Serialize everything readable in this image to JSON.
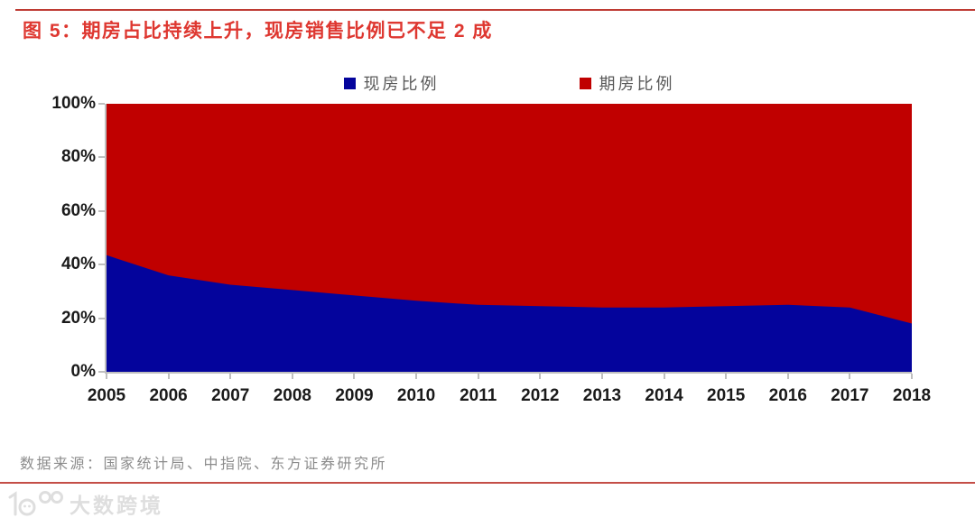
{
  "title": "图 5：期房占比持续上升，现房销售比例已不足 2 成",
  "source_note": "数据来源：国家统计局、中指院、东方证券研究所",
  "watermark": "大数跨境",
  "colors": {
    "title_red": "#de3730",
    "divider_red": "#be3b33",
    "series_blue": "#04049c",
    "series_red": "#c00000",
    "axis_gray": "#bfbfbf",
    "tick_label": "#1a1a1a",
    "legend_text": "#595959",
    "source_text": "#8c8c8c",
    "watermark_gray": "#dedede"
  },
  "chart_data": {
    "type": "area",
    "stacked_percent": true,
    "title": "图 5：期房占比持续上升，现房销售比例已不足 2 成",
    "xlabel": "",
    "ylabel": "",
    "ylim": [
      0,
      100
    ],
    "y_ticks": [
      "0%",
      "20%",
      "40%",
      "60%",
      "80%",
      "100%"
    ],
    "grid": false,
    "legend_position": "top",
    "categories": [
      "2005",
      "2006",
      "2007",
      "2008",
      "2009",
      "2010",
      "2011",
      "2012",
      "2013",
      "2014",
      "2015",
      "2016",
      "2017",
      "2018"
    ],
    "series": [
      {
        "name": "现房比例",
        "color": "#04049c",
        "values": [
          43.5,
          36,
          32.5,
          30.5,
          28.5,
          26.5,
          25,
          24.5,
          24,
          24,
          24.5,
          25,
          24,
          18
        ]
      },
      {
        "name": "期房比例",
        "color": "#c00000",
        "values": [
          56.5,
          64,
          67.5,
          69.5,
          71.5,
          73.5,
          75,
          75.5,
          76,
          76,
          75.5,
          75,
          76,
          82
        ]
      }
    ]
  }
}
